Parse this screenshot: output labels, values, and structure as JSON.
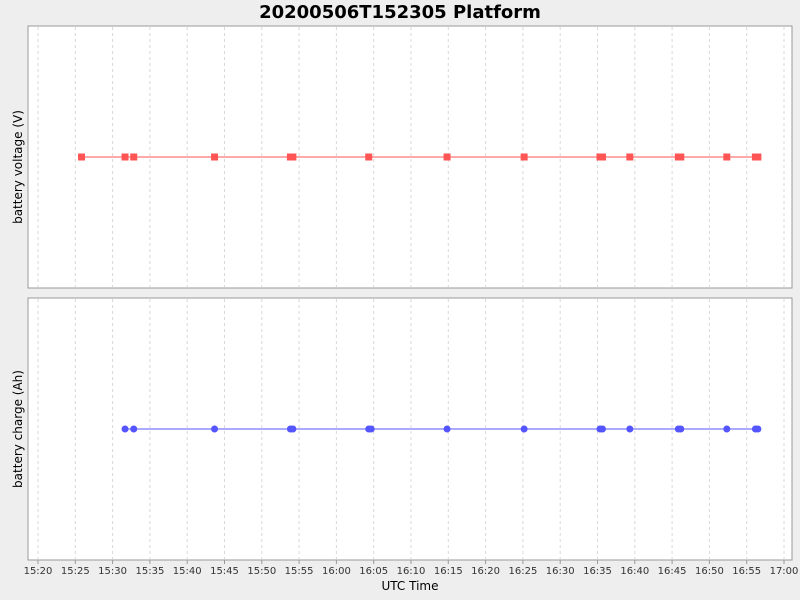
{
  "chart_data": {
    "type": "line",
    "title": "20200506T152305 Platform",
    "xlabel": "UTC Time",
    "x_ticks": [
      "15:20",
      "15:25",
      "15:30",
      "15:35",
      "15:40",
      "15:45",
      "15:50",
      "15:55",
      "16:00",
      "16:05",
      "16:10",
      "16:15",
      "16:20",
      "16:25",
      "16:30",
      "16:35",
      "16:40",
      "16:45",
      "16:50",
      "16:55",
      "17:00"
    ],
    "grid": true,
    "panels": [
      {
        "ylabel": "battery voltage (V)",
        "series": [
          {
            "color": "#ff5555",
            "marker": "square",
            "x": [
              "15:25:50",
              "15:31:40",
              "15:32:50",
              "15:43:40",
              "15:53:50",
              "15:54:10",
              "16:04:20",
              "16:14:50",
              "16:25:10",
              "16:35:20",
              "16:35:40",
              "16:39:20",
              "16:45:50",
              "16:46:10",
              "16:52:20",
              "16:56:10",
              "16:56:30"
            ],
            "y": [
              1,
              1,
              1,
              1,
              1,
              1,
              1,
              1,
              1,
              1,
              1,
              1,
              1,
              1,
              1,
              1,
              1
            ]
          }
        ],
        "ylim": [
          0,
          2
        ]
      },
      {
        "ylabel": "battery charge (Ah)",
        "series": [
          {
            "color": "#5555ff",
            "marker": "circle",
            "x": [
              "15:31:40",
              "15:32:50",
              "15:43:40",
              "15:53:50",
              "15:54:10",
              "16:04:20",
              "16:04:40",
              "16:14:50",
              "16:25:10",
              "16:35:20",
              "16:35:40",
              "16:39:20",
              "16:45:50",
              "16:46:10",
              "16:52:20",
              "16:56:10",
              "16:56:30"
            ],
            "y": [
              1,
              1,
              1,
              1,
              1,
              1,
              1,
              1,
              1,
              1,
              1,
              1,
              1,
              1,
              1,
              1,
              1
            ]
          }
        ],
        "ylim": [
          0,
          2
        ]
      }
    ]
  }
}
